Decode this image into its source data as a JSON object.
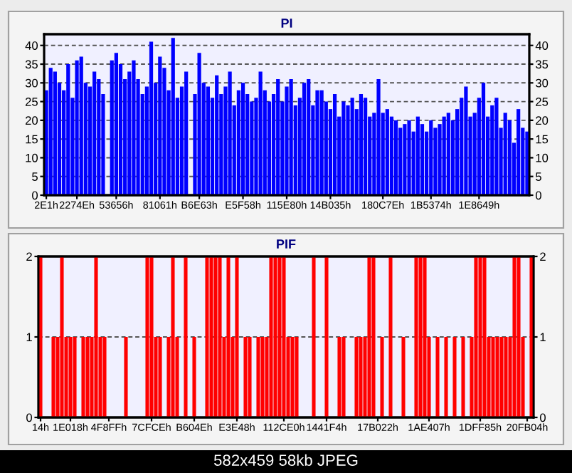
{
  "chart_data": [
    {
      "type": "bar",
      "title": "PI",
      "categories": [
        "2E1h",
        null,
        null,
        null,
        null,
        null,
        null,
        "2274Eh",
        null,
        null,
        null,
        null,
        null,
        null,
        null,
        null,
        "53656h",
        null,
        null,
        null,
        null,
        null,
        null,
        null,
        null,
        null,
        "81061h",
        null,
        null,
        null,
        null,
        null,
        null,
        null,
        null,
        "B6E63h",
        null,
        null,
        null,
        null,
        null,
        null,
        null,
        null,
        null,
        "E5F58h",
        null,
        null,
        null,
        null,
        null,
        null,
        null,
        null,
        null,
        "115E80h",
        null,
        null,
        null,
        null,
        null,
        null,
        null,
        null,
        null,
        "14B035h",
        null,
        null,
        null,
        null,
        null,
        null,
        null,
        null,
        null,
        null,
        null,
        "180C7Eh",
        null,
        null,
        null,
        null,
        null,
        null,
        null,
        null,
        null,
        null,
        "1B5374h",
        null,
        null,
        null,
        null,
        null,
        null,
        null,
        null,
        null,
        null,
        "1E8649h",
        null,
        null,
        null,
        null,
        null,
        null,
        null,
        null,
        null,
        null,
        null
      ],
      "values": [
        28,
        34,
        33,
        30,
        28,
        35,
        26,
        36,
        37,
        30,
        29,
        33,
        31,
        27,
        null,
        36,
        38,
        35,
        31,
        33,
        36,
        31,
        27,
        29,
        41,
        30,
        37,
        34,
        28,
        42,
        26,
        29,
        33,
        null,
        27,
        38,
        30,
        29,
        26,
        32,
        27,
        29,
        33,
        24,
        28,
        30,
        27,
        25,
        26,
        33,
        28,
        25,
        27,
        31,
        25,
        29,
        31,
        24,
        26,
        30,
        31,
        24,
        28,
        28,
        25,
        23,
        27,
        21,
        25,
        24,
        26,
        23,
        27,
        26,
        21,
        22,
        31,
        22,
        23,
        21,
        20,
        18,
        19,
        20,
        17,
        21,
        19,
        17,
        20,
        18,
        19,
        21,
        22,
        20,
        23,
        26,
        29,
        21,
        22,
        26,
        30,
        21,
        24,
        26,
        18,
        22,
        20,
        14,
        23,
        18,
        17
      ],
      "color": "#0000ff",
      "ylim": [
        0,
        43
      ],
      "yticks": [
        0,
        5,
        10,
        15,
        20,
        25,
        30,
        35,
        40
      ],
      "y2lim": [
        0,
        43
      ],
      "y2ticks": [
        0,
        5,
        10,
        15,
        20,
        25,
        30,
        35,
        40
      ],
      "grid": "y",
      "legend": false
    },
    {
      "type": "bar",
      "title": "PIF",
      "categories": [
        "14h",
        null,
        null,
        null,
        null,
        null,
        null,
        "1E018h",
        null,
        null,
        null,
        null,
        null,
        null,
        null,
        null,
        "4F8FFh",
        null,
        null,
        null,
        null,
        null,
        null,
        null,
        null,
        null,
        "7CFCEh",
        null,
        null,
        null,
        null,
        null,
        null,
        null,
        null,
        null,
        "B604Eh",
        null,
        null,
        null,
        null,
        null,
        null,
        null,
        null,
        null,
        "E3E48h",
        null,
        null,
        null,
        null,
        null,
        null,
        null,
        null,
        null,
        null,
        "112CE0h",
        null,
        null,
        null,
        null,
        null,
        null,
        null,
        null,
        null,
        "1441F4h",
        null,
        null,
        null,
        null,
        null,
        null,
        null,
        null,
        null,
        null,
        null,
        "17B022h",
        null,
        null,
        null,
        null,
        null,
        null,
        null,
        null,
        null,
        null,
        null,
        "1AE407h",
        null,
        null,
        null,
        null,
        null,
        null,
        null,
        null,
        null,
        null,
        null,
        "1DFF85h",
        null,
        null,
        null,
        null,
        null,
        null,
        null,
        null,
        null,
        null,
        "20FB04h",
        null
      ],
      "values": [
        2,
        0,
        0,
        1,
        1,
        2,
        1,
        1,
        1,
        0,
        1,
        1,
        1,
        2,
        1,
        1,
        0,
        0,
        0,
        0,
        1,
        0,
        0,
        0,
        0,
        2,
        2,
        1,
        1,
        0,
        1,
        2,
        1,
        0,
        2,
        0,
        1,
        0,
        0,
        2,
        2,
        2,
        2,
        1,
        2,
        1,
        2,
        0,
        1,
        1,
        0,
        1,
        1,
        1,
        2,
        2,
        2,
        2,
        1,
        1,
        1,
        0,
        0,
        0,
        2,
        0,
        0,
        2,
        0,
        0,
        1,
        1,
        0,
        0,
        1,
        1,
        1,
        2,
        2,
        0,
        1,
        0,
        2,
        0,
        0,
        1,
        0,
        0,
        2,
        2,
        2,
        1,
        0,
        1,
        0,
        1,
        0,
        1,
        0,
        1,
        0,
        1,
        2,
        2,
        2,
        1,
        1,
        1,
        1,
        1,
        1,
        2,
        2,
        1,
        0,
        2
      ],
      "color": "#ff0000",
      "ylim": [
        0,
        2
      ],
      "yticks": [
        0,
        1,
        2
      ],
      "y2lim": [
        0,
        2
      ],
      "y2ticks": [
        0,
        1,
        2
      ],
      "grid": "y",
      "legend": false,
      "annotations": [
        "582x459 58kb JPEG"
      ]
    }
  ]
}
